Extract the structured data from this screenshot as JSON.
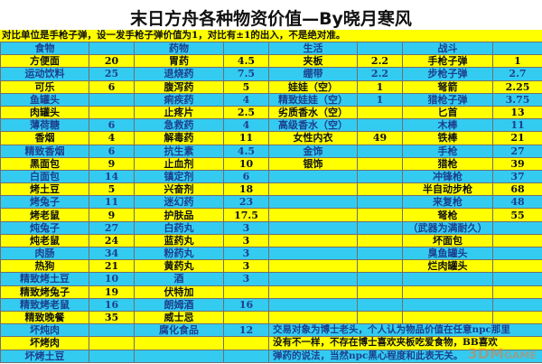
{
  "title": "末日方舟各种物资价值—By晓月寒风",
  "note": "对比单位是手枪子弹，设一发手枪子弹价值为1，对比有±1的出入，不是绝对准。",
  "colors": {
    "yellow_row": "#ffff00",
    "cyan_row": "#33ccf0",
    "cyan_text": "#1d3f8e"
  },
  "header": [
    "食物",
    "",
    "药物",
    "",
    "生活",
    "",
    "战斗",
    ""
  ],
  "rows": [
    [
      "方便面",
      "20",
      "胃药",
      "4.5",
      "夹板",
      "2.2",
      "手枪子弹",
      "1"
    ],
    [
      "运动饮料",
      "25",
      "退烧药",
      "7.5",
      "绷带",
      "2.2",
      "步枪子弹",
      "2.7"
    ],
    [
      "可乐",
      "6",
      "腹泻药",
      "5",
      "娃娃（空）",
      "1",
      "弩箭",
      "2.25"
    ],
    [
      "鱼罐头",
      "",
      "痢疾药",
      "4",
      "精致娃娃（空）",
      "1",
      "猎枪子弹",
      "3.75"
    ],
    [
      "肉罐头",
      "",
      "止疼片",
      "2.5",
      "劣质香水（空）",
      "",
      "匕首",
      "13"
    ],
    [
      "薄荷糖",
      "6",
      "急救药",
      "4",
      "高级香水（空）",
      "",
      "木棒",
      "11"
    ],
    [
      "香烟",
      "4",
      "解毒药",
      "11",
      "女性内衣",
      "49",
      "铁棒",
      "21"
    ],
    [
      "精致香烟",
      "6",
      "抗生素",
      "4.5",
      "金饰",
      "",
      "手枪",
      "27"
    ],
    [
      "黑面包",
      "9",
      "止血剂",
      "10",
      "银饰",
      "",
      "猎枪",
      "39"
    ],
    [
      "白面包",
      "14",
      "镇定剂",
      "6",
      "",
      "",
      "冲锋枪",
      "37"
    ],
    [
      "烤土豆",
      "5",
      "兴奋剂",
      "18",
      "",
      "",
      "半自动步枪",
      "68"
    ],
    [
      "烤兔子",
      "11",
      "迷幻药",
      "23",
      "",
      "",
      "来复枪",
      "48"
    ],
    [
      "烤老鼠",
      "9",
      "护肤品",
      "17.5",
      "",
      "",
      "弩枪",
      "55"
    ],
    [
      "炖兔子",
      "27",
      "白药丸",
      "3",
      "",
      "",
      "（武器为满耐久）",
      ""
    ],
    [
      "炖老鼠",
      "24",
      "蓝药丸",
      "3",
      "",
      "",
      "坏面包",
      ""
    ],
    [
      "肉肠",
      "34",
      "粉药丸",
      "3",
      "",
      "",
      "臭鱼罐头",
      ""
    ],
    [
      "热狗",
      "21",
      "黄药丸",
      "3",
      "",
      "",
      "烂肉罐头",
      ""
    ],
    [
      "精致烤土豆",
      "10",
      "酒",
      "3",
      "",
      "",
      "",
      ""
    ],
    [
      "精致烤兔子",
      "19",
      "伏特加",
      "",
      "",
      "",
      "",
      ""
    ],
    [
      "精致烤老鼠",
      "16",
      "朗姆酒",
      "16",
      "",
      "",
      "",
      ""
    ],
    [
      "精致晚餐",
      "35",
      "威士忌",
      "",
      "",
      "",
      "",
      ""
    ],
    [
      "坏炖肉",
      "",
      "腐化食品",
      "12",
      "",
      "",
      "",
      ""
    ],
    [
      "坏烤肉",
      "",
      "",
      "",
      "",
      "",
      "",
      ""
    ],
    [
      "坏烤土豆",
      "",
      "",
      "",
      "",
      "",
      "",
      ""
    ]
  ],
  "memo": [
    "交易对象为博士老头，个人认为物品价值在任意npc那里",
    "没有不一样，不存在博士喜欢夹板吃爱食物，BB喜欢",
    "弹药的说法，当然npc黑心程度和此表无关。"
  ],
  "watermark": "3DMGAME"
}
